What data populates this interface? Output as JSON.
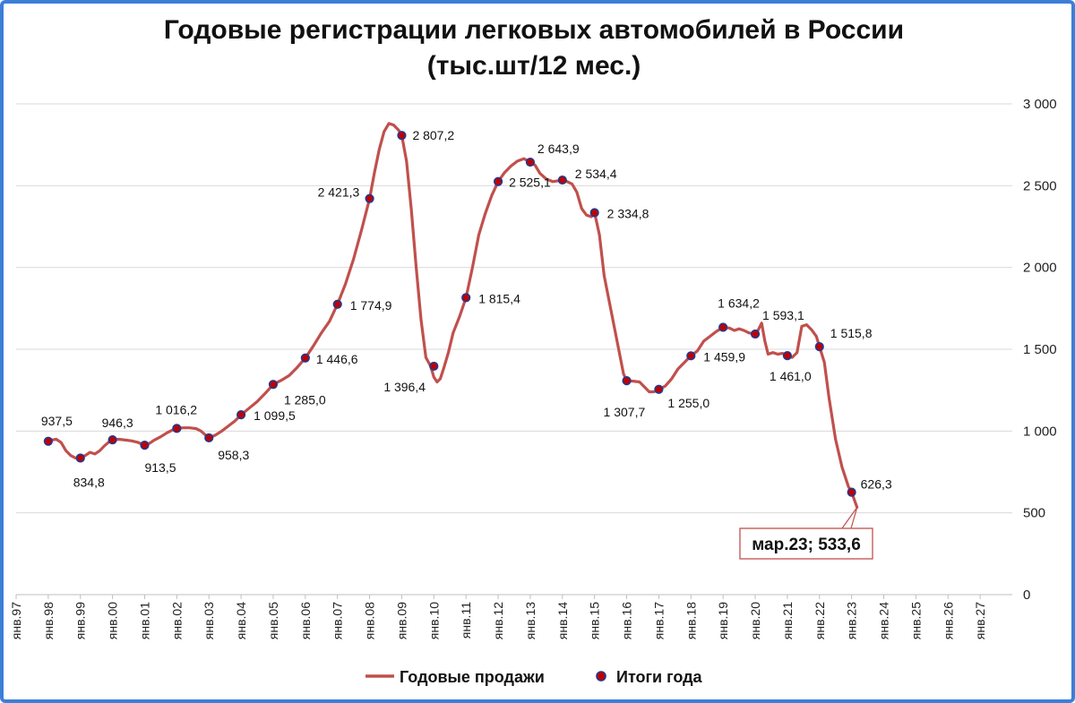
{
  "chart_data": {
    "type": "line",
    "title": "Годовые регистрации легковых автомобилей в России",
    "subtitle": "(тыс.шт/12 мес.)",
    "xlabel": "",
    "ylabel": "",
    "ylim": [
      0,
      3000
    ],
    "yticks": [
      0,
      500,
      1000,
      1500,
      2000,
      2500,
      3000
    ],
    "ytick_labels": [
      "0",
      "500",
      "1 000",
      "1 500",
      "2 000",
      "2 500",
      "3 000"
    ],
    "xlim": [
      1997,
      2028
    ],
    "xtick_labels": [
      "янв.97",
      "янв.98",
      "янв.99",
      "янв.00",
      "янв.01",
      "янв.02",
      "янв.03",
      "янв.04",
      "янв.05",
      "янв.06",
      "янв.07",
      "янв.08",
      "янв.09",
      "янв.10",
      "янв.11",
      "янв.12",
      "янв.13",
      "янв.14",
      "янв.15",
      "янв.16",
      "янв.17",
      "янв.18",
      "янв.19",
      "янв.20",
      "янв.21",
      "янв.22",
      "янв.23",
      "янв.24",
      "янв.25",
      "янв.26",
      "янв.27"
    ],
    "grid": "horizontal",
    "legend_position": "bottom",
    "series": [
      {
        "name": "Годовые продажи",
        "type": "line",
        "color": "#c0504d",
        "x": [
          1998.0,
          1998.1,
          1998.25,
          1998.4,
          1998.55,
          1998.7,
          1998.85,
          1999.0,
          1999.15,
          1999.3,
          1999.45,
          1999.6,
          1999.75,
          1999.9,
          2000.0,
          2000.2,
          2000.4,
          2000.6,
          2000.8,
          2001.0,
          2001.15,
          2001.3,
          2001.5,
          2001.7,
          2001.85,
          2002.0,
          2002.2,
          2002.4,
          2002.6,
          2002.75,
          2002.9,
          2003.0,
          2003.2,
          2003.4,
          2003.6,
          2003.8,
          2004.0,
          2004.25,
          2004.5,
          2004.75,
          2005.0,
          2005.25,
          2005.5,
          2005.75,
          2006.0,
          2006.25,
          2006.5,
          2006.75,
          2007.0,
          2007.25,
          2007.5,
          2007.75,
          2008.0,
          2008.15,
          2008.3,
          2008.45,
          2008.6,
          2008.75,
          2008.9,
          2009.0,
          2009.15,
          2009.3,
          2009.45,
          2009.6,
          2009.75,
          2009.9,
          2010.0,
          2010.1,
          2010.2,
          2010.3,
          2010.45,
          2010.6,
          2010.8,
          2011.0,
          2011.2,
          2011.4,
          2011.6,
          2011.8,
          2012.0,
          2012.2,
          2012.4,
          2012.6,
          2012.8,
          2013.0,
          2013.15,
          2013.3,
          2013.5,
          2013.7,
          2013.85,
          2014.0,
          2014.15,
          2014.3,
          2014.45,
          2014.6,
          2014.75,
          2014.9,
          2015.0,
          2015.15,
          2015.3,
          2015.5,
          2015.65,
          2015.8,
          2015.9,
          2016.0,
          2016.2,
          2016.4,
          2016.55,
          2016.7,
          2016.85,
          2017.0,
          2017.2,
          2017.4,
          2017.6,
          2017.8,
          2018.0,
          2018.2,
          2018.4,
          2018.6,
          2018.8,
          2019.0,
          2019.2,
          2019.35,
          2019.5,
          2019.65,
          2019.8,
          2020.0,
          2020.1,
          2020.2,
          2020.3,
          2020.4,
          2020.55,
          2020.7,
          2020.85,
          2021.0,
          2021.15,
          2021.3,
          2021.45,
          2021.6,
          2021.75,
          2021.9,
          2022.0,
          2022.15,
          2022.3,
          2022.5,
          2022.7,
          2022.9,
          2023.0,
          2023.17
        ],
        "y": [
          937.5,
          945,
          950,
          930,
          880,
          850,
          835,
          834.8,
          850,
          870,
          860,
          880,
          910,
          935,
          946.3,
          950,
          945,
          940,
          930,
          913.5,
          925,
          945,
          965,
          990,
          1005,
          1016.2,
          1020,
          1020,
          1015,
          1000,
          975,
          958.3,
          975,
          1000,
          1030,
          1060,
          1099.5,
          1140,
          1180,
          1230,
          1285.0,
          1310,
          1340,
          1390,
          1446.6,
          1520,
          1600,
          1670,
          1774.9,
          1900,
          2050,
          2230,
          2421.3,
          2580,
          2720,
          2830,
          2880,
          2870,
          2840,
          2807.2,
          2650,
          2350,
          2000,
          1680,
          1450,
          1396.4,
          1330,
          1300,
          1320,
          1380,
          1480,
          1600,
          1700,
          1815.4,
          2000,
          2200,
          2330,
          2440,
          2525.1,
          2580,
          2620,
          2650,
          2665,
          2643.9,
          2625,
          2575,
          2540,
          2525,
          2530,
          2534.4,
          2525,
          2510,
          2460,
          2360,
          2320,
          2310,
          2334.8,
          2200,
          1950,
          1750,
          1600,
          1450,
          1350,
          1307.7,
          1305,
          1300,
          1270,
          1240,
          1240,
          1255.0,
          1275,
          1320,
          1380,
          1420,
          1459.9,
          1490,
          1550,
          1580,
          1610,
          1634.2,
          1630,
          1615,
          1625,
          1615,
          1600,
          1593.1,
          1620,
          1660,
          1550,
          1470,
          1480,
          1470,
          1475,
          1461.0,
          1450,
          1480,
          1640,
          1650,
          1620,
          1580,
          1515.8,
          1420,
          1200,
          950,
          780,
          660,
          626.3,
          533.6
        ]
      },
      {
        "name": "Итоги года",
        "type": "scatter",
        "color": "#c00000",
        "x": [
          1998,
          1999,
          2000,
          2001,
          2002,
          2003,
          2004,
          2005,
          2006,
          2007,
          2008,
          2009,
          2010,
          2011,
          2012,
          2013,
          2014,
          2015,
          2016,
          2017,
          2018,
          2019,
          2020,
          2021,
          2022,
          2023
        ],
        "y": [
          937.5,
          834.8,
          946.3,
          913.5,
          1016.2,
          958.3,
          1099.5,
          1285.0,
          1446.6,
          1774.9,
          2421.3,
          2807.2,
          1396.4,
          1815.4,
          2525.1,
          2643.9,
          2534.4,
          2334.8,
          1307.7,
          1255.0,
          1459.9,
          1634.2,
          1593.1,
          1461.0,
          1515.8,
          626.3
        ],
        "labels": [
          "937,5",
          "834,8",
          "946,3",
          "913,5",
          "1 016,2",
          "958,3",
          "1 099,5",
          "1 285,0",
          "1 446,6",
          "1 774,9",
          "2 421,3",
          "2 807,2",
          "1 396,4",
          "1 815,4",
          "2 525,1",
          "2 643,9",
          "2 534,4",
          "2 334,8",
          "1 307,7",
          "1 255,0",
          "1 459,9",
          "1 634,2",
          "1 593,1",
          "1 461,0",
          "1 515,8",
          "626,3"
        ]
      }
    ],
    "annotation": {
      "text": "мар.23;  533,6",
      "x": 2023.17,
      "y": 533.6,
      "border_color": "#c0504d"
    },
    "frame_color": "#3c7fd8"
  }
}
